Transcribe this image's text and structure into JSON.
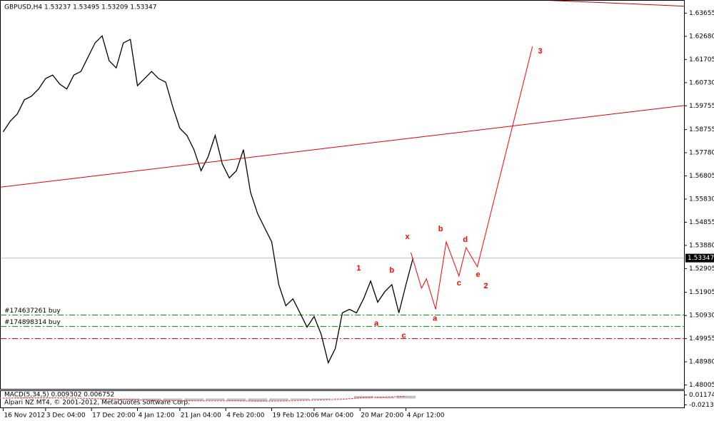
{
  "chart_data": [
    {
      "type": "line",
      "title": "GBPUSD,H4  1.53237 1.53495 1.53209 1.53347",
      "xlim": [
        -0.4,
        96.4
      ],
      "ylim": [
        1.47826,
        1.64193
      ],
      "yticks": [
        1.63655,
        {
          "value": 1.6268,
          "label": "1.62680"
        },
        1.61705,
        {
          "value": 1.6073,
          "label": "1.60730"
        },
        1.59755,
        1.58755,
        {
          "value": 1.5778,
          "label": "1.57780"
        },
        1.56805,
        {
          "value": 1.5583,
          "label": "1.55830"
        },
        1.54855,
        {
          "value": 1.5388,
          "label": "1.53880"
        },
        1.52905,
        1.51905,
        {
          "value": 1.5093,
          "label": "1.50930"
        },
        1.49955,
        {
          "value": 1.4898,
          "label": "1.48980"
        },
        1.48005
      ],
      "xticks": [
        {
          "value": 0,
          "label": "16 Nov 2012"
        },
        {
          "value": 6,
          "label": "3 Dec 04:00"
        },
        {
          "value": 12.5,
          "label": "17 Dec 20:00"
        },
        {
          "value": 19,
          "label": "4 Jan 12:00"
        },
        {
          "value": 25,
          "label": "21 Jan 04:00"
        },
        {
          "value": 31.5,
          "label": "4 Feb 20:00"
        },
        {
          "value": 38,
          "label": "19 Feb 12:00"
        },
        {
          "value": 44,
          "label": "6 Mar 04:00"
        },
        {
          "value": 50.5,
          "label": "20 Mar 20:00"
        },
        {
          "value": 57,
          "label": "4 Apr 12:00"
        }
      ],
      "series": [
        {
          "color": "#000000",
          "values": [
            1.5866,
            1.5911,
            1.5941,
            1.6001,
            1.6016,
            1.6046,
            1.609,
            1.6105,
            1.6067,
            1.6046,
            1.6105,
            1.612,
            1.618,
            1.624,
            1.627,
            1.6165,
            1.6135,
            1.624,
            1.6255,
            1.606,
            1.609,
            1.612,
            1.609,
            1.6075,
            1.5971,
            1.5881,
            1.5851,
            1.5791,
            1.5702,
            1.5761,
            1.5851,
            1.5732,
            1.5672,
            1.5702,
            1.5791,
            1.5612,
            1.5522,
            1.5462,
            1.5403,
            1.5223,
            1.5134,
            1.5163,
            1.5104,
            1.5044,
            1.5089,
            1.5014,
            1.4894,
            1.4954,
            1.5104,
            1.5119,
            1.5104,
            1.5163,
            1.5238,
            1.5149,
            1.5193,
            1.5223,
            1.5104,
            1.5223,
            1.53347
          ]
        }
      ],
      "trendlines": [
        {
          "color": "#e00000",
          "x": [
            -0.4,
            96.4
          ],
          "values": [
            1.5633,
            1.5977
          ]
        },
        {
          "color": "#c00000",
          "x": [
            77.4,
            96.4
          ],
          "values": [
            1.6419,
            1.6395
          ]
        },
        {
          "color": "#ff0000",
          "x": [
            57.7,
            59.2,
            59.9,
            61.2,
            62.7,
            64.5,
            65.5,
            67.1,
            74.9
          ],
          "values": [
            1.5358,
            1.5208,
            1.5247,
            1.5119,
            1.5403,
            1.5259,
            1.5379,
            1.5298,
            1.6225
          ]
        }
      ],
      "annotations": [
        {
          "text": "x",
          "x": 57.2,
          "y": 1.5424
        },
        {
          "text": "b",
          "x": 61.9,
          "y": 1.5457
        },
        {
          "text": "d",
          "x": 65.4,
          "y": 1.5412
        },
        {
          "text": "1",
          "x": 50.3,
          "y": 1.5292
        },
        {
          "text": "b",
          "x": 55.0,
          "y": 1.5283
        },
        {
          "text": "3",
          "x": 76.0,
          "y": 1.6204
        },
        {
          "text": "c",
          "x": 64.5,
          "y": 1.5229
        },
        {
          "text": "e",
          "x": 67.2,
          "y": 1.5265
        },
        {
          "text": "2",
          "x": 68.3,
          "y": 1.5217
        },
        {
          "text": "a",
          "x": 52.8,
          "y": 1.5059
        },
        {
          "text": "a",
          "x": 61.1,
          "y": 1.508
        },
        {
          "text": "c",
          "x": 56.7,
          "y": 1.5008
        }
      ],
      "annotation_color": "#ff0000",
      "hlines": [
        {
          "value": 1.5095,
          "label": "#174637261 buy",
          "color": "#00a000"
        },
        {
          "value": 1.5047,
          "label": "#174898314 buy",
          "color": "#00a000"
        },
        {
          "value": 1.4996,
          "color": "#ff0000"
        }
      ],
      "last_price": 1.53347
    },
    {
      "type": "macd",
      "title": "MACD(5,34,5) 0.009302 0.006752",
      "ylim": [
        -0.03023,
        0.02499
      ],
      "yticks": [
        0.01174,
        -0.02139
      ],
      "x": [
        0,
        3,
        6,
        9,
        12,
        15,
        18,
        21,
        24,
        27,
        30,
        33,
        36,
        39,
        42,
        45,
        48,
        51,
        54,
        57
      ],
      "values": [
        0.002,
        0.003,
        0.002,
        0.001,
        -0.001,
        -0.004,
        -0.006,
        -0.007,
        -0.008,
        -0.008,
        -0.007,
        -0.009,
        -0.01,
        -0.008,
        -0.006,
        -0.004,
        -0.002,
        0.008,
        0.006,
        0.009
      ],
      "signal": [
        0.001,
        0.002,
        0.002,
        0.002,
        0.0,
        -0.002,
        -0.004,
        -0.006,
        -0.007,
        -0.008,
        -0.008,
        -0.008,
        -0.009,
        -0.009,
        -0.007,
        -0.005,
        -0.003,
        0.003,
        0.005,
        0.007
      ],
      "color": "#c0c0c0",
      "signal_color": "#ff0000"
    }
  ],
  "footer": "Alpari NZ MT4, © 2001-2012, MetaQuotes Software Corp."
}
